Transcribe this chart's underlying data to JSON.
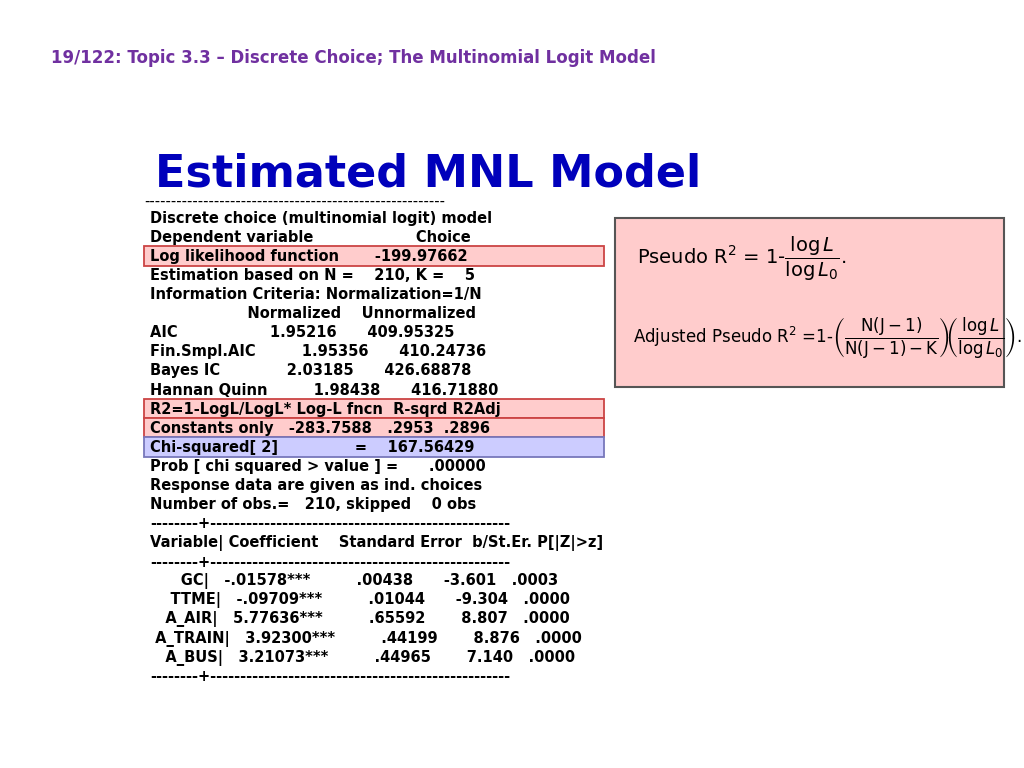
{
  "header_text": "19/122: Topic 3.3 – Discrete Choice; The Multinomial Logit Model",
  "header_top_color": "#7030a0",
  "header_bottom_color": "#ffffff",
  "header_text_color": "#ffff00",
  "header_text_color2": "#7030a0",
  "left_bar_color": "#1f1f6e",
  "title": "Estimated MNL Model",
  "title_color": "#0000bb",
  "bg_color": "#ffffff",
  "monospace_lines": [
    "Discrete choice (multinomial logit) model",
    "Dependent variable                    Choice",
    "Log likelihood function       -199.97662",
    "Estimation based on N =    210, K =    5",
    "Information Criteria: Normalization=1/N",
    "                   Normalized    Unnormalized",
    "AIC                  1.95216      409.95325",
    "Fin.Smpl.AIC         1.95356      410.24736",
    "Bayes IC             2.03185      426.68878",
    "Hannan Quinn         1.98438      416.71880",
    "R2=1-LogL/LogL* Log-L fncn  R-sqrd R2Adj",
    "Constants only   -283.7588   .2953  .2896",
    "Chi-squared[ 2]               =    167.56429",
    "Prob [ chi squared > value ] =      .00000",
    "Response data are given as ind. choices",
    "Number of obs.=   210, skipped    0 obs",
    "--------+--------------------------------------------------",
    "Variable| Coefficient    Standard Error  b/St.Er. P[|Z|>z]",
    "--------+--------------------------------------------------",
    "      GC|   -.01578***         .00438      -3.601   .0003",
    "    TTME|   -.09709***         .01044      -9.304   .0000",
    "   A_AIR|   5.77636***         .65592       8.807   .0000",
    " A_TRAIN|   3.92300***         .44199       8.876   .0000",
    "   A_BUS|   3.21073***         .44965       7.140   .0000",
    "--------+--------------------------------------------------"
  ],
  "highlight_pink_lines": [
    2,
    10,
    11
  ],
  "highlight_blue_lines": [
    12
  ],
  "pink_color": "#ffcccc",
  "blue_color": "#ccccff",
  "separator_line": "--------------------------------------------------------",
  "box_bg": "#ffcccc",
  "box_border": "#555555"
}
